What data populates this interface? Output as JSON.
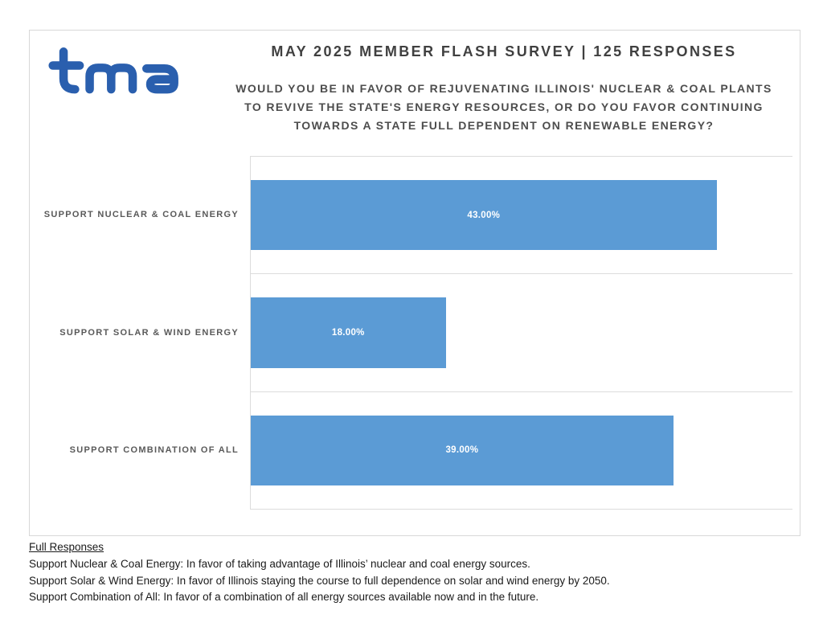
{
  "logo": {
    "name": "tma",
    "color": "#2a5fae"
  },
  "chart_data": {
    "type": "bar",
    "orientation": "horizontal",
    "title": "MAY 2025 MEMBER FLASH SURVEY | 125 RESPONSES",
    "subtitle_lines": [
      "WOULD YOU BE IN FAVOR OF REJUVENATING ILLINOIS' NUCLEAR & COAL PLANTS",
      "TO REVIVE THE STATE'S ENERGY RESOURCES, OR DO YOU FAVOR CONTINUING",
      "TOWARDS A STATE FULL DEPENDENT ON RENEWABLE ENERGY?"
    ],
    "categories": [
      "SUPPORT NUCLEAR & COAL ENERGY",
      "SUPPORT SOLAR & WIND ENERGY",
      "SUPPORT COMBINATION OF ALL"
    ],
    "values": [
      43,
      18,
      39
    ],
    "value_labels": [
      "43.00%",
      "18.00%",
      "39.00%"
    ],
    "xlabel": "",
    "ylabel": "",
    "xlim": [
      0,
      50
    ],
    "grid": "horizontal category separators only",
    "legend": "none",
    "bar_color": "#5b9bd5",
    "value_label_color": "#ffffff"
  },
  "colors": {
    "title_text": "#404040",
    "subtitle_text": "#4d4d4d",
    "category_label_text": "#595959",
    "gridline": "#dcdcdc",
    "box_border": "#d8d8d8",
    "background": "#ffffff"
  },
  "footer": {
    "heading": "Full Responses",
    "lines": [
      "Support Nuclear & Coal Energy: In favor of taking advantage of Illinois’ nuclear and coal energy sources.",
      "Support Solar & Wind Energy: In favor of Illinois staying the course to full dependence on solar and wind energy by 2050.",
      "Support Combination of All: In favor of a combination of all energy sources available now and in the future."
    ]
  }
}
